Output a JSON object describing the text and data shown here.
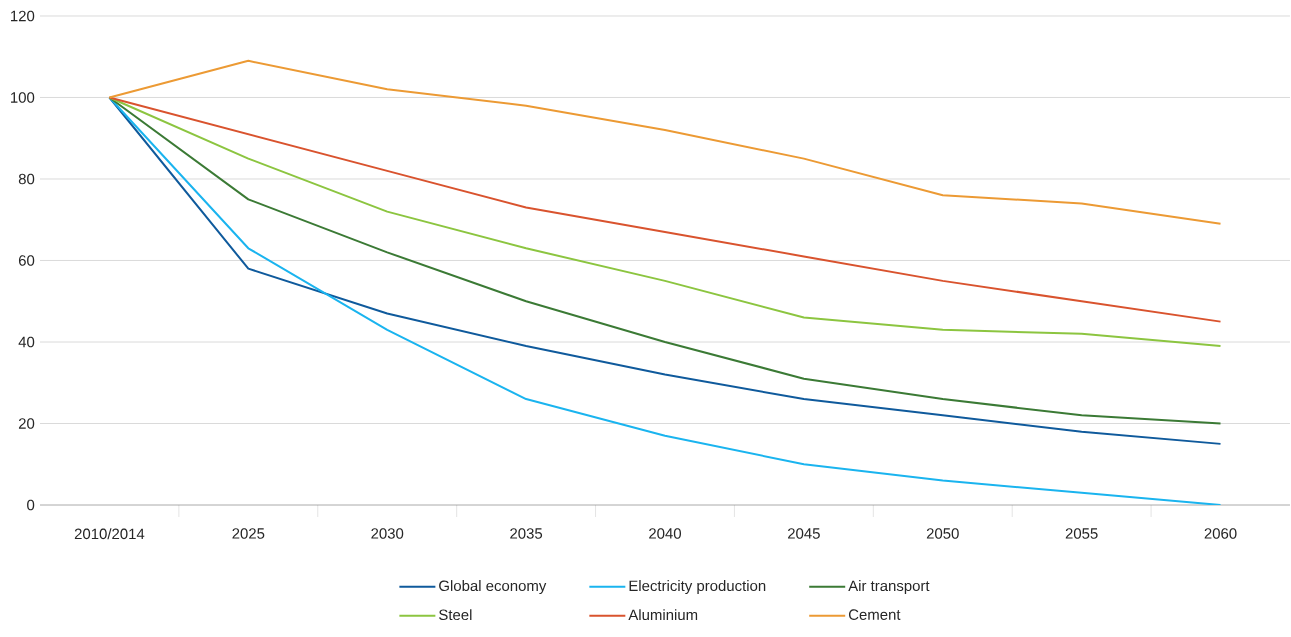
{
  "chart_data": {
    "type": "line",
    "categories": [
      "2010/2014",
      "2025",
      "2030",
      "2035",
      "2040",
      "2045",
      "2050",
      "2055",
      "2060"
    ],
    "series": [
      {
        "name": "Global economy",
        "color": "#0f5a9c",
        "values": [
          100,
          58,
          47,
          39,
          32,
          26,
          22,
          18,
          15
        ]
      },
      {
        "name": "Electricity production",
        "color": "#1ab4ef",
        "values": [
          100,
          63,
          43,
          26,
          17,
          10,
          6,
          3,
          0
        ]
      },
      {
        "name": "Air transport",
        "color": "#3b7a35",
        "values": [
          100,
          75,
          62,
          50,
          40,
          31,
          26,
          22,
          20
        ]
      },
      {
        "name": "Steel",
        "color": "#8cc540",
        "values": [
          100,
          85,
          72,
          63,
          55,
          46,
          43,
          42,
          39
        ]
      },
      {
        "name": "Aluminium",
        "color": "#d9532e",
        "values": [
          100,
          91,
          82,
          73,
          67,
          61,
          55,
          50,
          45
        ]
      },
      {
        "name": "Cement",
        "color": "#ec9a34",
        "values": [
          100,
          109,
          102,
          98,
          92,
          85,
          76,
          74,
          69
        ]
      }
    ],
    "ylim": [
      0,
      120
    ],
    "yticks": [
      0,
      20,
      40,
      60,
      80,
      100,
      120
    ],
    "grid": "y",
    "legend": "bottom",
    "marker": "none",
    "line_style": "solid"
  }
}
